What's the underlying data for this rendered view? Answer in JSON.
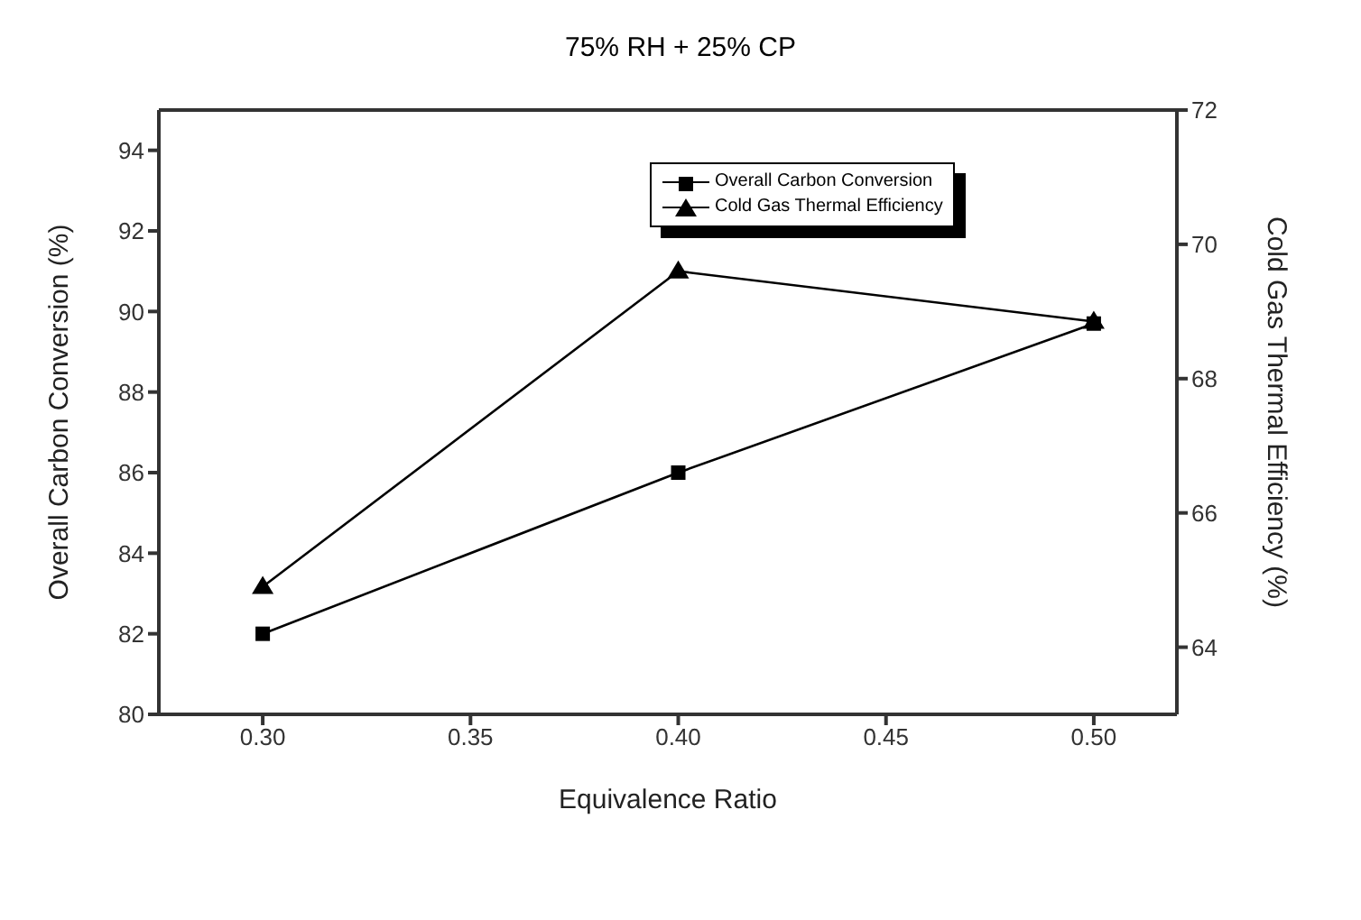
{
  "chart_data": {
    "type": "line",
    "title": "75% RH + 25% CP",
    "xlabel": "Equivalence Ratio",
    "ylabel": "Overall Carbon Conversion (%)",
    "y2label": "Cold Gas Thermal Efficiency (%)",
    "x": [
      0.3,
      0.4,
      0.5
    ],
    "series": [
      {
        "name": "Overall Carbon Conversion",
        "color": "#000000",
        "marker": "square",
        "values": [
          82,
          86,
          89.7
        ]
      },
      {
        "name": "Cold Gas Thermal Efficiency",
        "color": "#000000",
        "marker": "triangle",
        "axis": "y2",
        "values": [
          64.9,
          69.6,
          68.85
        ]
      }
    ],
    "xlim": [
      0.275,
      0.52
    ],
    "xticks": [
      {
        "value": 0.3,
        "label": "0.30"
      },
      0.35,
      {
        "value": 0.4,
        "label": "0.40"
      },
      0.45,
      {
        "value": 0.5,
        "label": "0.50"
      }
    ],
    "ylim": [
      80,
      95
    ],
    "yticks": [
      80,
      82,
      84,
      86,
      88,
      90,
      92,
      94
    ],
    "y2lim": [
      63,
      72
    ],
    "y2ticks": [
      64,
      66,
      68,
      70,
      72
    ],
    "grid": false,
    "legend": "top right",
    "line_style": "solid"
  }
}
